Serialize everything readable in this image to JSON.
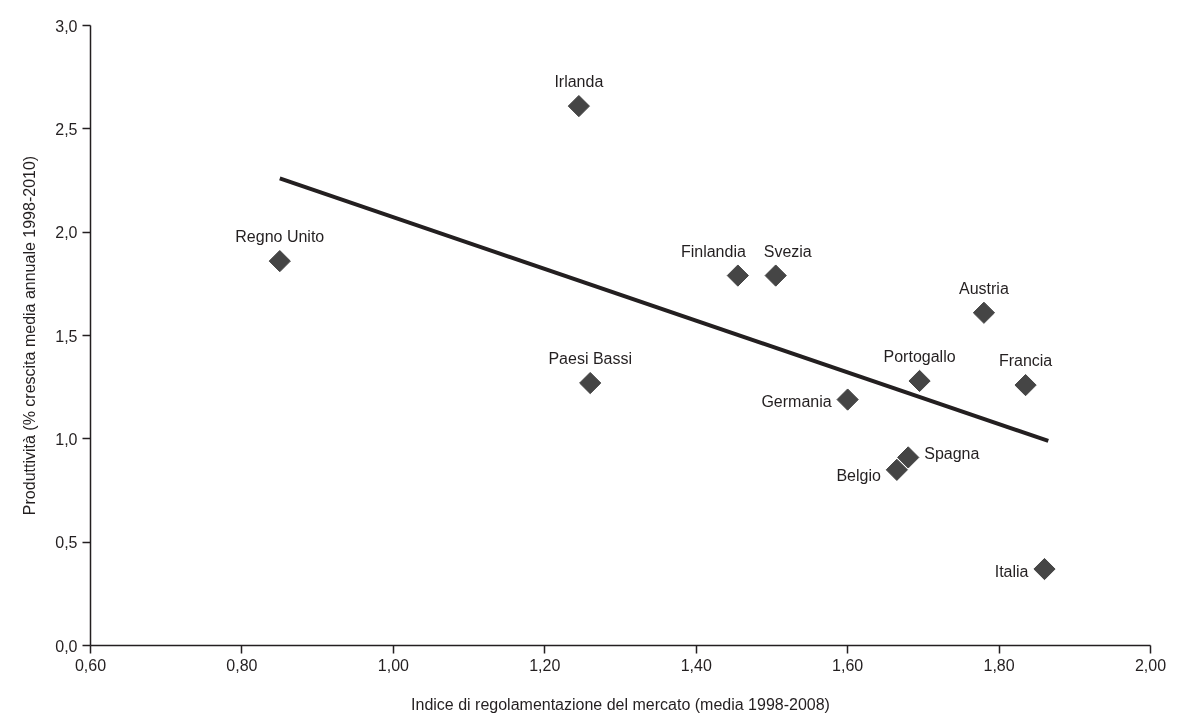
{
  "chart_data": {
    "type": "scatter",
    "xlabel": "Indice di regolamentazione del mercato (media 1998-2008)",
    "ylabel": "Produttività (% crescita media annuale 1998-2010)",
    "xlim": [
      0.6,
      2.0
    ],
    "ylim": [
      0,
      3.0
    ],
    "xticks": [
      {
        "value": 0.6,
        "label": "0,60"
      },
      {
        "value": 0.8,
        "label": "0,80"
      },
      {
        "value": 1.0,
        "label": "1,00"
      },
      {
        "value": 1.2,
        "label": "1,20"
      },
      {
        "value": 1.4,
        "label": "1,40"
      },
      {
        "value": 1.6,
        "label": "1,60"
      },
      {
        "value": 1.8,
        "label": "1,80"
      },
      {
        "value": 2.0,
        "label": "2,00"
      }
    ],
    "yticks": [
      {
        "value": 0,
        "label": "0,0"
      },
      {
        "value": 0.5,
        "label": "0,5"
      },
      {
        "value": 1.0,
        "label": "1,0"
      },
      {
        "value": 1.5,
        "label": "1,5"
      },
      {
        "value": 2.0,
        "label": "2,0"
      },
      {
        "value": 2.5,
        "label": "2,5"
      },
      {
        "value": 3.0,
        "label": "3,0"
      }
    ],
    "grid": false,
    "series": [
      {
        "type": "scatter",
        "marker": "diamond",
        "color": "#454545",
        "x": [
          0.85,
          1.245,
          1.26,
          1.455,
          1.505,
          1.6,
          1.665,
          1.68,
          1.695,
          1.78,
          1.835,
          1.86
        ],
        "values": [
          1.86,
          2.61,
          1.27,
          1.79,
          1.79,
          1.19,
          0.85,
          0.91,
          1.28,
          1.61,
          1.26,
          0.37
        ]
      },
      {
        "type": "line",
        "color": "#231f20",
        "line_style": "solid",
        "x": [
          0.85,
          1.865
        ],
        "values": [
          2.26,
          0.99
        ]
      }
    ],
    "annotations": [
      {
        "text": "Regno Unito",
        "x": 0.85,
        "y": 1.86
      },
      {
        "text": "Irlanda",
        "x": 1.245,
        "y": 2.61
      },
      {
        "text": "Paesi Bassi",
        "x": 1.26,
        "y": 1.27
      },
      {
        "text": "Finlandia",
        "x": 1.455,
        "y": 1.79
      },
      {
        "text": "Svezia",
        "x": 1.505,
        "y": 1.79
      },
      {
        "text": "Germania",
        "x": 1.6,
        "y": 1.19
      },
      {
        "text": "Belgio",
        "x": 1.665,
        "y": 0.85
      },
      {
        "text": "Spagna",
        "x": 1.68,
        "y": 0.91
      },
      {
        "text": "Portogallo",
        "x": 1.695,
        "y": 1.28
      },
      {
        "text": "Austria",
        "x": 1.78,
        "y": 1.61
      },
      {
        "text": "Francia",
        "x": 1.835,
        "y": 1.26
      },
      {
        "text": "Italia",
        "x": 1.86,
        "y": 0.37
      }
    ]
  }
}
